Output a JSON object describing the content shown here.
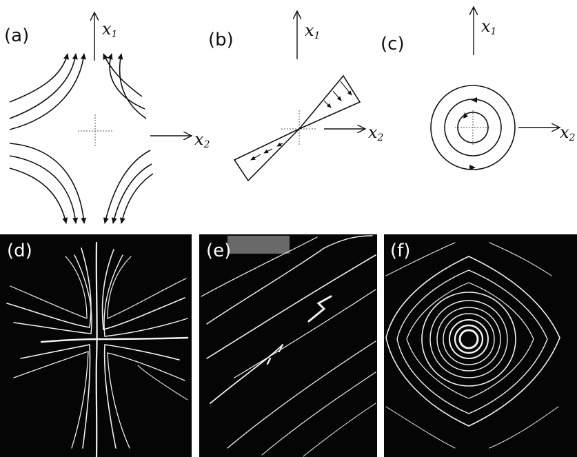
{
  "panels": [
    {
      "id": "a",
      "label": "(a)",
      "axis_x1": "x",
      "axis_x1_sub": "1",
      "axis_x2": "x",
      "axis_x2_sub": "2"
    },
    {
      "id": "b",
      "label": "(b)",
      "axis_x1": "x",
      "axis_x1_sub": "1",
      "axis_x2": "x",
      "axis_x2_sub": "2"
    },
    {
      "id": "c",
      "label": "(c)",
      "axis_x1": "x",
      "axis_x1_sub": "1",
      "axis_x2": "x",
      "axis_x2_sub": "2"
    },
    {
      "id": "d",
      "label": "(d)"
    },
    {
      "id": "e",
      "label": "(e)"
    },
    {
      "id": "f",
      "label": "(f)"
    }
  ],
  "colors": {
    "ink": "#111111",
    "photo_bg": "#050505",
    "streak": "#f2f2f2"
  }
}
